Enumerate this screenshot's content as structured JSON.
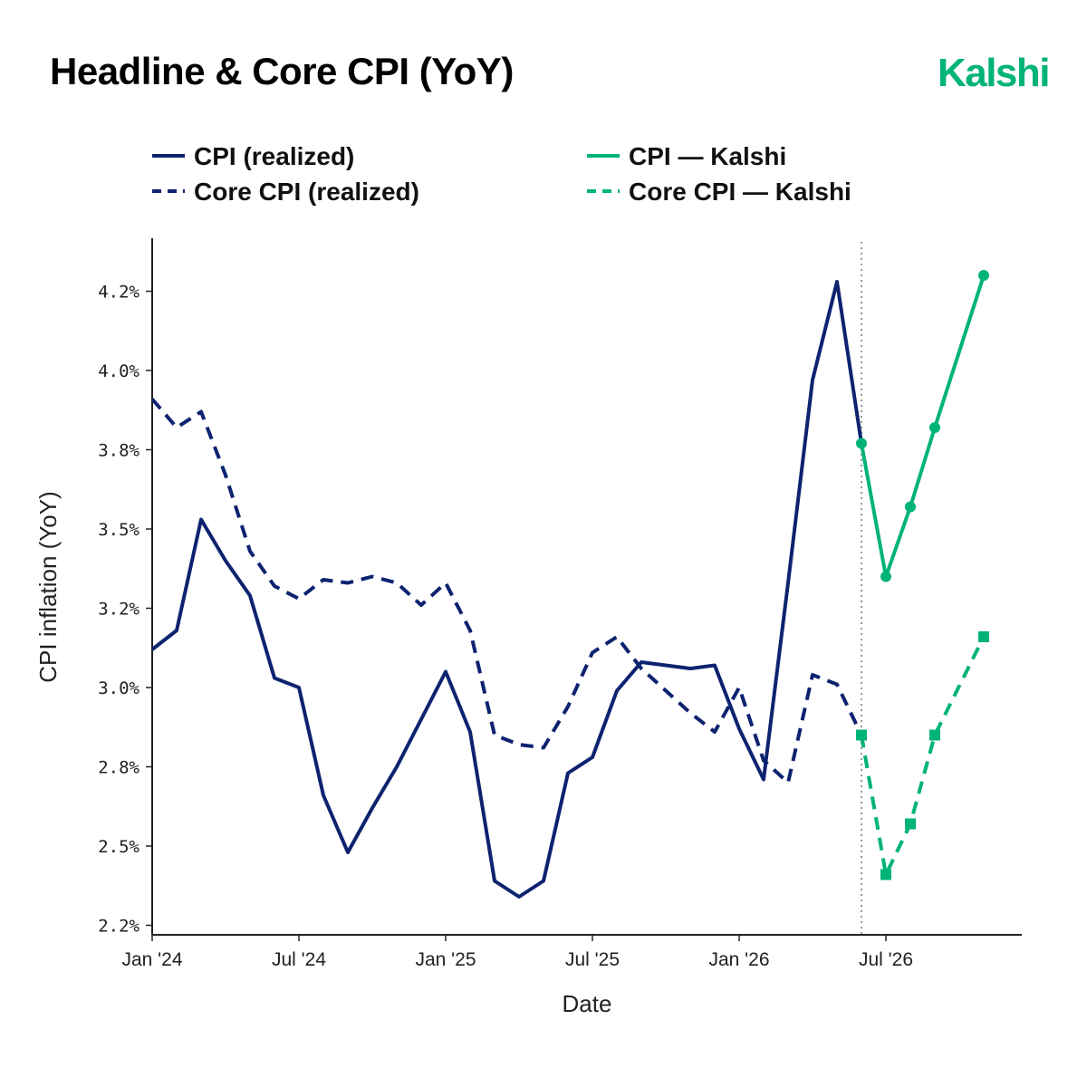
{
  "title": "Headline & Core CPI (YoY)",
  "brand": {
    "name": "Kalshi",
    "color": "#00b377"
  },
  "chart_data": {
    "type": "line",
    "xlabel": "Date",
    "ylabel": "CPI inflation (YoY)",
    "x_ticks": [
      {
        "label": "Jan '24",
        "date": "2024-01"
      },
      {
        "label": "Jul '24",
        "date": "2024-07"
      },
      {
        "label": "Jan '25",
        "date": "2025-01"
      },
      {
        "label": "Jul '25",
        "date": "2025-07"
      },
      {
        "label": "Jan '26",
        "date": "2026-01"
      },
      {
        "label": "Jul '26",
        "date": "2026-07"
      }
    ],
    "y_ticks": [
      "2.2%",
      "2.5%",
      "2.8%",
      "3.0%",
      "3.2%",
      "3.5%",
      "3.8%",
      "4.0%",
      "4.2%"
    ],
    "ylim": [
      2.2,
      4.3
    ],
    "xlim": [
      "2024-01",
      "2026-12"
    ],
    "forecast_start": "2026-06",
    "legend_position": "top",
    "grid": false,
    "series": [
      {
        "name": "CPI (realized)",
        "color": "#0d2370",
        "style": "solid",
        "marker": "none",
        "points": [
          [
            "2024-01",
            3.07
          ],
          [
            "2024-02",
            3.13
          ],
          [
            "2024-03",
            3.48
          ],
          [
            "2024-04",
            3.35
          ],
          [
            "2024-05",
            3.24
          ],
          [
            "2024-06",
            2.98
          ],
          [
            "2024-07",
            2.95
          ],
          [
            "2024-08",
            2.61
          ],
          [
            "2024-09",
            2.43
          ],
          [
            "2024-10",
            2.57
          ],
          [
            "2024-11",
            2.7
          ],
          [
            "2024-12",
            2.85
          ],
          [
            "2025-01",
            3.0
          ],
          [
            "2025-02",
            2.81
          ],
          [
            "2025-03",
            2.34
          ],
          [
            "2025-04",
            2.29
          ],
          [
            "2025-05",
            2.34
          ],
          [
            "2025-06",
            2.68
          ],
          [
            "2025-07",
            2.73
          ],
          [
            "2025-08",
            2.94
          ],
          [
            "2025-09",
            3.03
          ],
          [
            "2025-10",
            3.02
          ],
          [
            "2025-11",
            3.01
          ],
          [
            "2025-12",
            3.02
          ],
          [
            "2026-01",
            2.82
          ],
          [
            "2026-02",
            2.66
          ],
          [
            "2026-03",
            3.28
          ],
          [
            "2026-04",
            3.92
          ],
          [
            "2026-05",
            4.23
          ],
          [
            "2026-06",
            3.72
          ]
        ]
      },
      {
        "name": "Core CPI (realized)",
        "color": "#0d2370",
        "style": "dashed",
        "marker": "none",
        "points": [
          [
            "2024-01",
            3.86
          ],
          [
            "2024-02",
            3.77
          ],
          [
            "2024-03",
            3.82
          ],
          [
            "2024-04",
            3.62
          ],
          [
            "2024-05",
            3.38
          ],
          [
            "2024-06",
            3.27
          ],
          [
            "2024-07",
            3.23
          ],
          [
            "2024-08",
            3.29
          ],
          [
            "2024-09",
            3.28
          ],
          [
            "2024-10",
            3.3
          ],
          [
            "2024-11",
            3.28
          ],
          [
            "2024-12",
            3.21
          ],
          [
            "2025-01",
            3.28
          ],
          [
            "2025-02",
            3.13
          ],
          [
            "2025-03",
            2.8
          ],
          [
            "2025-04",
            2.77
          ],
          [
            "2025-05",
            2.76
          ],
          [
            "2025-06",
            2.89
          ],
          [
            "2025-07",
            3.06
          ],
          [
            "2025-08",
            3.11
          ],
          [
            "2025-09",
            3.01
          ],
          [
            "2025-10",
            2.94
          ],
          [
            "2025-11",
            2.87
          ],
          [
            "2025-12",
            2.81
          ],
          [
            "2026-01",
            2.95
          ],
          [
            "2026-02",
            2.72
          ],
          [
            "2026-03",
            2.65
          ],
          [
            "2026-04",
            2.99
          ],
          [
            "2026-05",
            2.96
          ],
          [
            "2026-06",
            2.8
          ]
        ]
      },
      {
        "name": "CPI — Kalshi",
        "color": "#00b377",
        "style": "solid",
        "marker": "circle",
        "points": [
          [
            "2026-06",
            3.72
          ],
          [
            "2026-07",
            3.3
          ],
          [
            "2026-08",
            3.52
          ],
          [
            "2026-09",
            3.77
          ],
          [
            "2026-11",
            4.25
          ]
        ]
      },
      {
        "name": "Core CPI — Kalshi",
        "color": "#00b377",
        "style": "dashed",
        "marker": "square",
        "points": [
          [
            "2026-06",
            2.8
          ],
          [
            "2026-07",
            2.36
          ],
          [
            "2026-08",
            2.52
          ],
          [
            "2026-09",
            2.8
          ],
          [
            "2026-11",
            3.11
          ]
        ]
      }
    ]
  }
}
